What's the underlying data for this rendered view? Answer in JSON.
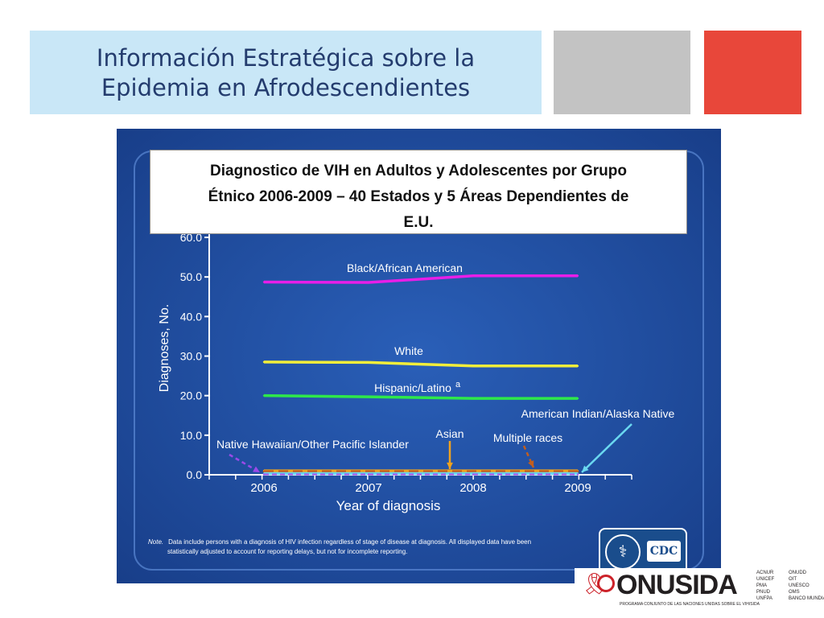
{
  "header": {
    "title_lines": [
      "Información Estratégica sobre la",
      "Epidemia en Afrodescendientes"
    ]
  },
  "chart_box": {
    "title_lines": [
      "Diagnostico de VIH en Adultos y Adolescentes por Grupo",
      "Étnico 2006-2009 – 40 Estados y 5 Áreas Dependientes de",
      "E.U."
    ]
  },
  "chart_data": {
    "type": "line",
    "xlabel": "Year of diagnosis",
    "ylabel": "Diagnoses, No.",
    "x": [
      "2006",
      "2007",
      "2008",
      "2009"
    ],
    "yticks": [
      "0.0",
      "10.0",
      "20.0",
      "30.0",
      "40.0",
      "50.0",
      "60.0"
    ],
    "ylim": [
      0,
      60
    ],
    "grid": false,
    "series": [
      {
        "name": "Black/African American",
        "color": "#e81ee8",
        "values": [
          48.7,
          48.6,
          50.3,
          50.3
        ]
      },
      {
        "name": "White",
        "color": "#f2ee3a",
        "values": [
          28.5,
          28.4,
          27.5,
          27.5
        ]
      },
      {
        "name": "Hispanic/Latino",
        "sup": "a",
        "color": "#2ee84a",
        "values": [
          20.0,
          19.7,
          19.3,
          19.3
        ]
      },
      {
        "name": "Asian",
        "color": "#f0a21e",
        "values": [
          1.0,
          1.0,
          1.0,
          1.0
        ]
      },
      {
        "name": "Multiple races",
        "color": "#c25e1e",
        "values": [
          0.8,
          0.8,
          0.8,
          0.8
        ]
      },
      {
        "name": "American Indian/Alaska Native",
        "color": "#6ad8f0",
        "values": [
          0.3,
          0.3,
          0.3,
          0.3
        ]
      },
      {
        "name": "Native Hawaiian/Other Pacific Islander",
        "color": "#9a4ae8",
        "values": [
          0.1,
          0.1,
          0.1,
          0.1
        ]
      }
    ]
  },
  "note": {
    "label": "Note.",
    "line1": "Data include persons with a diagnosis of HIV infection regardless of stage of disease at diagnosis. All displayed data have been",
    "line2": "statistically adjusted to account for reporting delays, but not for incomplete reporting."
  },
  "cdc_logo": {
    "text": "CDC"
  },
  "onusida_logo": {
    "name": "ONUSIDA",
    "tagline": "PROGRAMA CONJUNTO DE LAS NACIONES UNIDAS SOBRE EL VIH/SIDA",
    "col1": [
      "ACNUR",
      "UNICEF",
      "PMA",
      "PNUD",
      "UNFPA"
    ],
    "col2": [
      "ONUDD",
      "OIT",
      "UNESCO",
      "OMS",
      "BANCO MUNDIAL"
    ]
  }
}
